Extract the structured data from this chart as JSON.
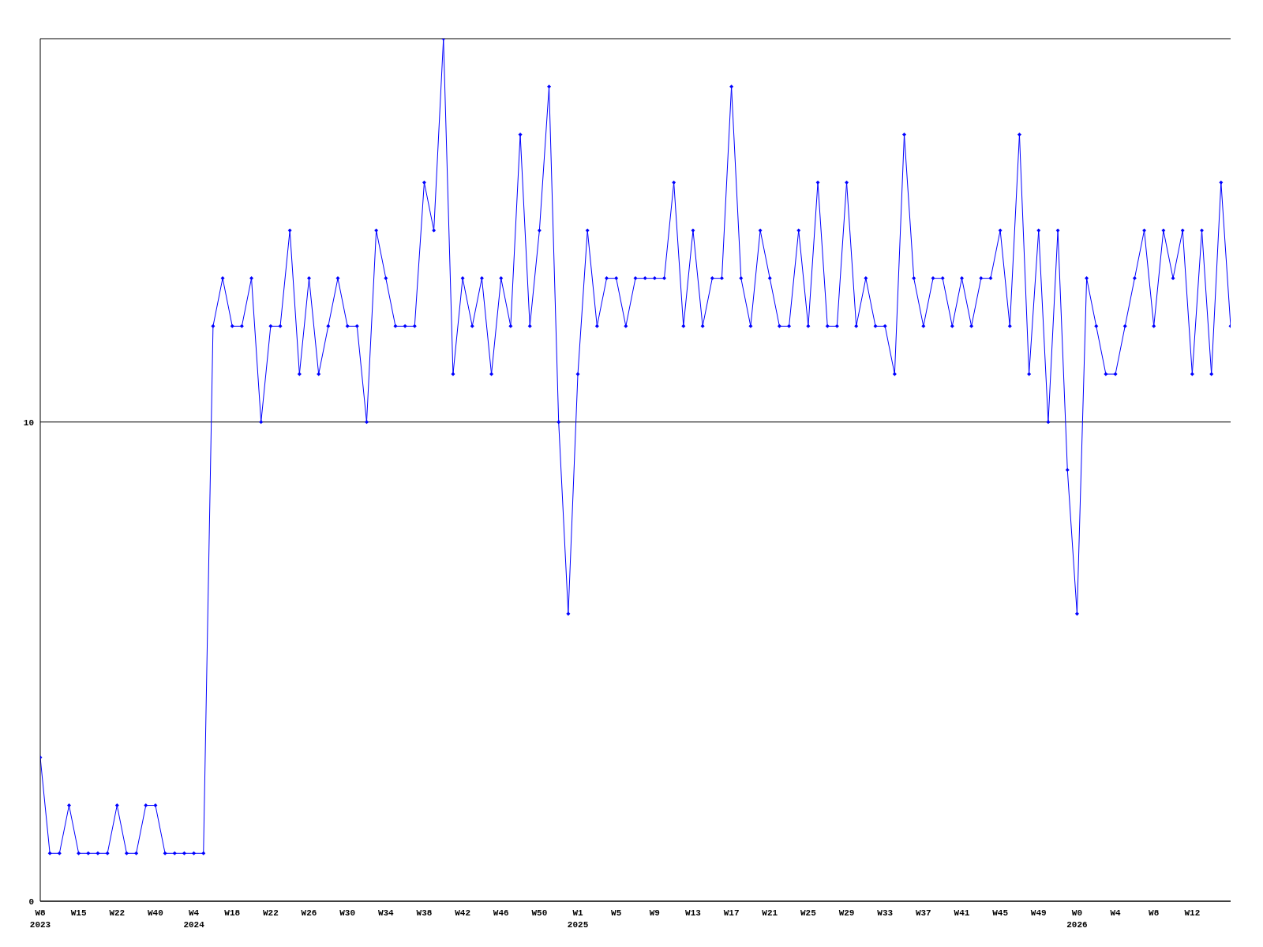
{
  "chart_data": {
    "type": "line",
    "categories": [
      "W8\n2023",
      null,
      null,
      null,
      "W15",
      null,
      null,
      null,
      "W22",
      null,
      null,
      null,
      "W40",
      null,
      null,
      null,
      "W4\n2024",
      null,
      null,
      null,
      "W18",
      null,
      null,
      null,
      "W22",
      null,
      null,
      null,
      "W26",
      null,
      null,
      null,
      "W30",
      null,
      null,
      null,
      "W34",
      null,
      null,
      null,
      "W38",
      null,
      null,
      null,
      "W42",
      null,
      null,
      null,
      "W46",
      null,
      null,
      null,
      "W50",
      null,
      null,
      null,
      "W1\n2025",
      null,
      null,
      null,
      "W5",
      null,
      null,
      null,
      "W9",
      null,
      null,
      null,
      "W13",
      null,
      null,
      null,
      "W17",
      null,
      null,
      null,
      "W21",
      null,
      null,
      null,
      "W25",
      null,
      null,
      null,
      "W29",
      null,
      null,
      null,
      "W33",
      null,
      null,
      null,
      "W37",
      null,
      null,
      null,
      "W41",
      null,
      null,
      null,
      "W45",
      null,
      null,
      null,
      "W49",
      null,
      null,
      null,
      "W0\n2026",
      null,
      null,
      null,
      "W4",
      null,
      null,
      null,
      "W8",
      null,
      null,
      null,
      "W12",
      null,
      null,
      null,
      null
    ],
    "series": [
      {
        "color": "#0000ff",
        "values": [
          3,
          1,
          1,
          2,
          1,
          1,
          1,
          1,
          2,
          1,
          1,
          2,
          2,
          1,
          1,
          1,
          1,
          1,
          12,
          13,
          12,
          12,
          13,
          10,
          12,
          12,
          14,
          11,
          13,
          11,
          12,
          13,
          12,
          12,
          10,
          14,
          13,
          12,
          12,
          12,
          15,
          14,
          18,
          11,
          13,
          12,
          13,
          11,
          13,
          12,
          16,
          12,
          14,
          17,
          10,
          6,
          11,
          14,
          12,
          13,
          13,
          12,
          13,
          13,
          13,
          13,
          15,
          12,
          14,
          12,
          13,
          13,
          17,
          13,
          12,
          14,
          13,
          12,
          12,
          14,
          12,
          15,
          12,
          12,
          15,
          12,
          13,
          12,
          12,
          11,
          16,
          13,
          12,
          13,
          13,
          12,
          13,
          12,
          13,
          13,
          14,
          12,
          16,
          11,
          14,
          10,
          14,
          9,
          6,
          13,
          12,
          11,
          11,
          12,
          13,
          14,
          12,
          14,
          13,
          14,
          11,
          14,
          11,
          15,
          12
        ]
      }
    ],
    "ylim": [
      0,
      18
    ],
    "yticks": [
      0,
      10
    ],
    "grid": "y",
    "legend": false,
    "marker": "diamond",
    "line_style": "solid"
  }
}
